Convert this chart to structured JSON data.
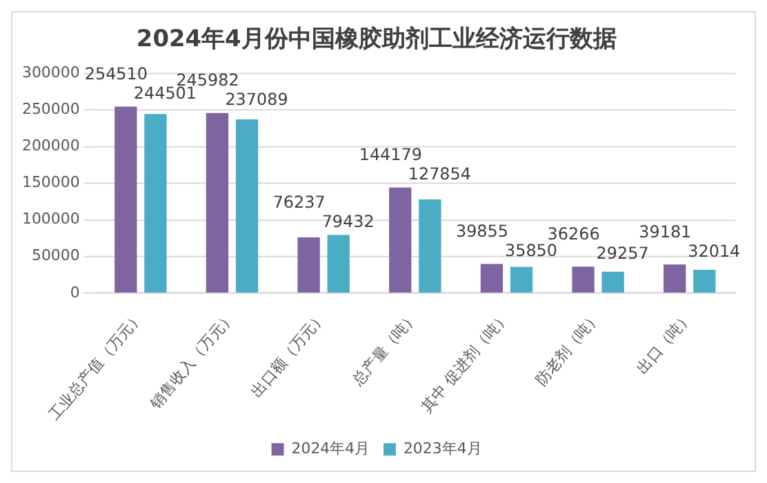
{
  "chart_data": {
    "type": "bar",
    "title": "2024年4月份中国橡胶助剂工业经济运行数据",
    "categories": [
      "工业总产值（万元）",
      "销售收入（万元）",
      "出口额（万元）",
      "总产量（吨）",
      "其中 促进剂（吨）",
      "防老剂（吨）",
      "出口（吨）"
    ],
    "series": [
      {
        "name": "2024年4月",
        "color": "#8064a2",
        "values": [
          254510,
          245982,
          76237,
          144179,
          39855,
          36266,
          39181
        ]
      },
      {
        "name": "2023年4月",
        "color": "#4bacc6",
        "values": [
          244501,
          237089,
          79432,
          127854,
          35850,
          29257,
          32014
        ]
      }
    ],
    "ylim": [
      0,
      300000
    ],
    "yticks": [
      0,
      50000,
      100000,
      150000,
      200000,
      250000,
      300000
    ],
    "grid": "y",
    "legend": "bottom",
    "data_labels": true
  }
}
